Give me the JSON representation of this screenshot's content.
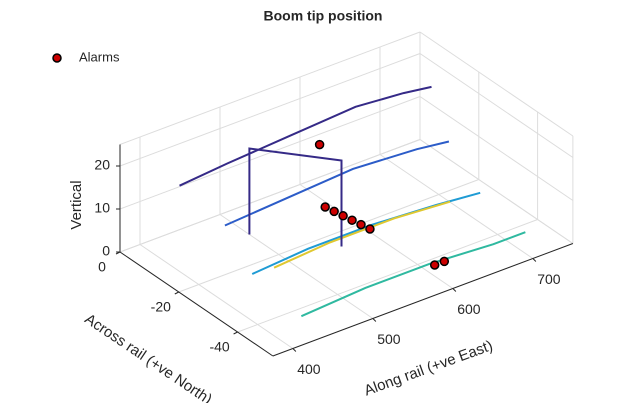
{
  "chart_data": {
    "type": "line3d",
    "title": "Boom tip position",
    "xlabel": "Along rail (+ve East)",
    "ylabel": "Across rail (+ve North)",
    "zlabel": "Vertical",
    "xlim": [
      375,
      750
    ],
    "ylim": [
      -52,
      0
    ],
    "zlim": [
      0,
      25
    ],
    "xticks": [
      400,
      500,
      600,
      700
    ],
    "yticks": [
      -40,
      -20,
      0
    ],
    "zticks": [
      0,
      10,
      20
    ],
    "grid": true,
    "legend": "top-left",
    "traces": [
      {
        "color": "#352a87",
        "x": [
          420,
          480,
          560,
          640,
          700,
          735
        ],
        "y": [
          -8,
          -8,
          -8,
          -8,
          -8,
          -8
        ],
        "z": [
          16,
          17,
          18,
          19,
          18,
          17
        ]
      },
      {
        "color": "#2c5cc8",
        "x": [
          440,
          520,
          600,
          680,
          720
        ],
        "y": [
          -18,
          -18,
          -18,
          -18,
          -18
        ],
        "z": [
          10,
          11,
          12,
          11,
          10
        ]
      },
      {
        "color": "#1f9bd4",
        "x": [
          430,
          500,
          580,
          660,
          715
        ],
        "y": [
          -30,
          -30,
          -30,
          -30,
          -30
        ],
        "z": [
          5,
          6,
          6,
          5,
          4
        ]
      },
      {
        "color": "#e0c830",
        "x": [
          450,
          520,
          600,
          670
        ],
        "y": [
          -32,
          -32,
          -32,
          -32
        ],
        "z": [
          6,
          7,
          7,
          6
        ]
      },
      {
        "color": "#2fb9a0",
        "x": [
          440,
          520,
          600,
          680,
          720
        ],
        "y": [
          -44,
          -44,
          -44,
          -44,
          -44
        ],
        "z": [
          1,
          2,
          2,
          1,
          1
        ]
      },
      {
        "color": "#352a87",
        "x": [
          500,
          500,
          560,
          560
        ],
        "y": [
          -10,
          -10,
          -25,
          -25
        ],
        "z": [
          0,
          20,
          20,
          0
        ]
      }
    ],
    "series": [
      {
        "name": "Alarms",
        "color": "#cc0000",
        "x": [
          551,
          558,
          560,
          562,
          564,
          566,
          568,
          603,
          615
        ],
        "y": [
          -20,
          -20,
          -22.5,
          -25,
          -27.5,
          -30,
          -32.5,
          -45,
          -45
        ],
        "z": [
          22,
          7,
          7,
          7,
          7,
          7,
          7,
          2,
          2
        ]
      }
    ]
  }
}
